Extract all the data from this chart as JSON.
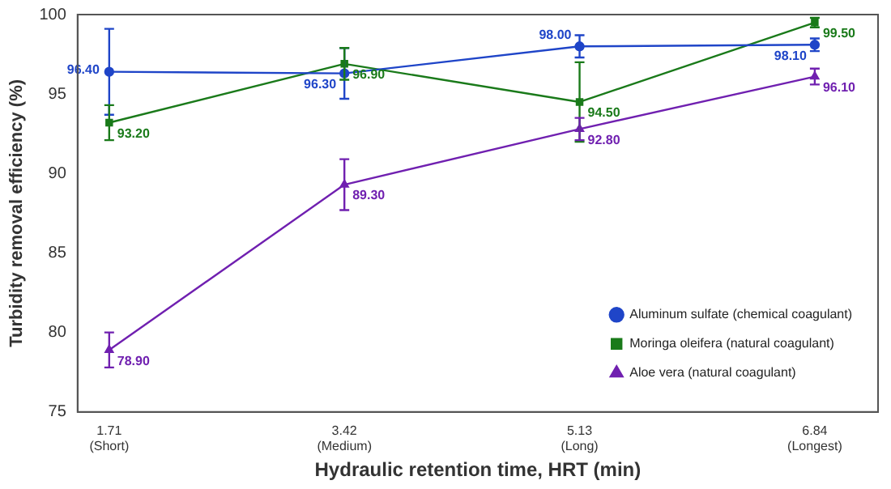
{
  "chart_data": {
    "type": "line",
    "xlabel": "Hydraulic retention time, HRT (min)",
    "ylabel": "Turbidity removal efficiency (%)",
    "x": [
      1.71,
      3.42,
      5.13,
      6.84
    ],
    "xlim": [
      1.48,
      7.3
    ],
    "xticks": [
      {
        "value": 1.71,
        "label": "1.71\n(Short)"
      },
      {
        "value": 3.42,
        "label": "3.42\n(Medium)"
      },
      {
        "value": 5.13,
        "label": "5.13\n(Long)"
      },
      {
        "value": 6.84,
        "label": "6.84\n(Longest)"
      }
    ],
    "ylim": [
      75,
      100
    ],
    "yticks": [
      75,
      80,
      85,
      90,
      95,
      100
    ],
    "grid": false,
    "legend": "bottom right",
    "series": [
      {
        "name": "Aluminum sulfate (chemical coagulant)",
        "color": "#1f45c8",
        "marker": "circle",
        "values": [
          96.4,
          96.3,
          98.0,
          98.1
        ],
        "value_labels": [
          "96.40",
          "96.30",
          "98.00",
          "98.10"
        ],
        "errors": [
          2.7,
          1.6,
          0.7,
          0.4
        ]
      },
      {
        "name": "Moringa oleifera (natural coagulant)",
        "color": "#1a7a1a",
        "marker": "square",
        "values": [
          93.2,
          96.9,
          94.5,
          99.5
        ],
        "value_labels": [
          "93.20",
          "96.90",
          "94.50",
          "99.50"
        ],
        "errors": [
          1.1,
          1.0,
          2.5,
          0.3
        ]
      },
      {
        "name": "Aloe vera (natural coagulant)",
        "color": "#7020b0",
        "marker": "triangle",
        "values": [
          78.9,
          89.3,
          92.8,
          96.1
        ],
        "value_labels": [
          "78.90",
          "89.30",
          "92.80",
          "96.10"
        ],
        "errors": [
          1.1,
          1.6,
          0.7,
          0.5
        ]
      }
    ]
  }
}
